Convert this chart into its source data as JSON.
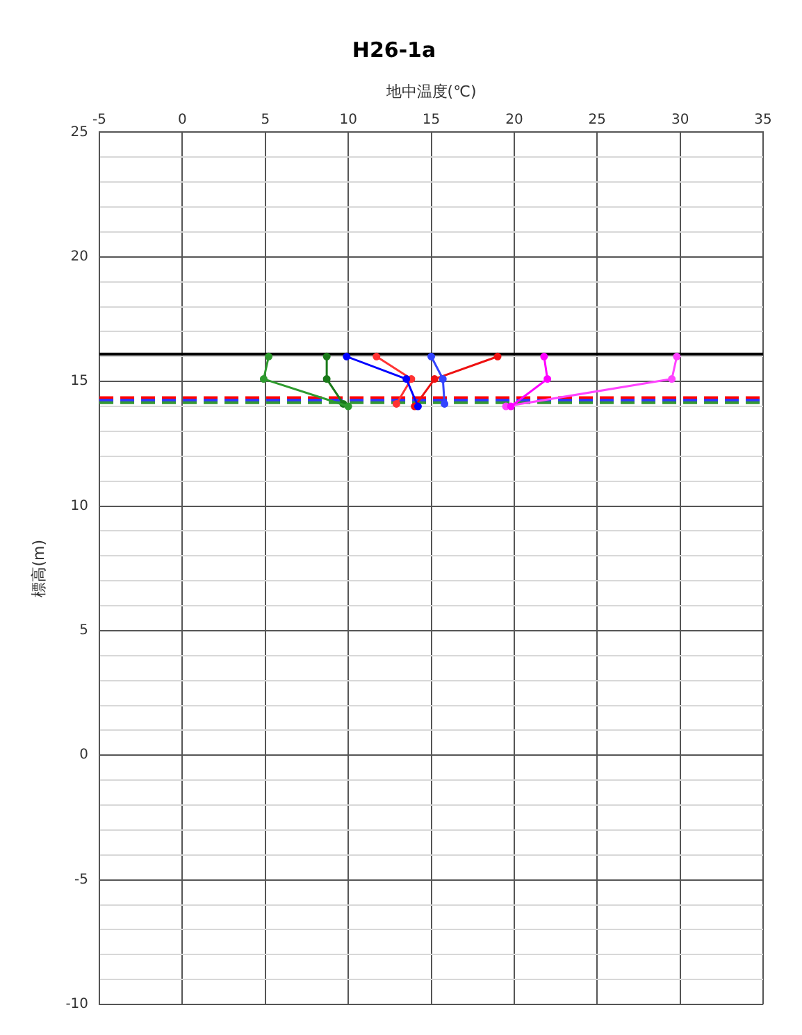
{
  "chart_data": {
    "type": "line",
    "title": "H26-1a",
    "xlabel": "地中温度(℃)",
    "ylabel": "標高(m)",
    "xlim": [
      -5,
      35
    ],
    "xticks": [
      -5,
      0,
      5,
      10,
      15,
      20,
      25,
      30,
      35
    ],
    "ylim": [
      -10,
      25
    ],
    "yticks": [
      -10,
      {
        "value": -9,
        "label": null
      },
      {
        "value": -8,
        "label": null
      },
      {
        "value": -7,
        "label": null
      },
      {
        "value": -6,
        "label": null
      },
      -5,
      {
        "value": -4,
        "label": null
      },
      {
        "value": -3,
        "label": null
      },
      {
        "value": -2,
        "label": null
      },
      {
        "value": -1,
        "label": null
      },
      0,
      {
        "value": 1,
        "label": null
      },
      {
        "value": 2,
        "label": null
      },
      {
        "value": 3,
        "label": null
      },
      {
        "value": 4,
        "label": null
      },
      5,
      {
        "value": 6,
        "label": null
      },
      {
        "value": 7,
        "label": null
      },
      {
        "value": 8,
        "label": null
      },
      {
        "value": 9,
        "label": null
      },
      10,
      {
        "value": 11,
        "label": null
      },
      {
        "value": 12,
        "label": null
      },
      {
        "value": 13,
        "label": null
      },
      {
        "value": 14,
        "label": null
      },
      15,
      {
        "value": 16,
        "label": null
      },
      {
        "value": 17,
        "label": null
      },
      {
        "value": 18,
        "label": null
      },
      {
        "value": 19,
        "label": null
      },
      20,
      {
        "value": 21,
        "label": null
      },
      {
        "value": 22,
        "label": null
      },
      {
        "value": 23,
        "label": null
      },
      {
        "value": 24,
        "label": null
      },
      25
    ],
    "grid": true,
    "legend": false,
    "marker": "circle",
    "line_style": "solid",
    "series": [
      {
        "color": "#2e9b2e",
        "x": [
          5.2,
          4.9,
          10.0
        ],
        "values": [
          16.0,
          15.1,
          14.0
        ]
      },
      {
        "color": "#1a7a1a",
        "x": [
          8.7,
          8.7,
          9.7
        ],
        "values": [
          16.0,
          15.1,
          14.1
        ]
      },
      {
        "color": "#0000ff",
        "x": [
          9.9,
          13.5,
          14.2
        ],
        "values": [
          16.0,
          15.1,
          14.0
        ]
      },
      {
        "color": "#3344ff",
        "x": [
          15.0,
          15.7,
          15.8
        ],
        "values": [
          16.0,
          15.1,
          14.1
        ]
      },
      {
        "color": "#ff3333",
        "x": [
          11.7,
          13.8,
          12.9
        ],
        "values": [
          16.0,
          15.1,
          14.1
        ]
      },
      {
        "color": "#ee1111",
        "x": [
          19.0,
          15.2,
          14.0
        ],
        "values": [
          16.0,
          15.1,
          14.0
        ]
      },
      {
        "color": "#ff00ff",
        "x": [
          21.8,
          22.0,
          19.8
        ],
        "values": [
          16.0,
          15.1,
          14.0
        ]
      },
      {
        "color": "#ff44ff",
        "x": [
          29.8,
          29.5,
          19.5
        ],
        "values": [
          16.0,
          15.1,
          14.0
        ]
      }
    ],
    "ref_lines": [
      {
        "axis": "y",
        "value": 16.1,
        "color": "#000000",
        "line_style": "solid"
      },
      {
        "axis": "y",
        "value": 14.35,
        "color": "#ff0000",
        "line_style": "dashed"
      },
      {
        "axis": "y",
        "value": 14.25,
        "color": "#3333ff",
        "line_style": "dashed"
      },
      {
        "axis": "y",
        "value": 14.15,
        "color": "#339933",
        "line_style": "dashed"
      }
    ]
  }
}
